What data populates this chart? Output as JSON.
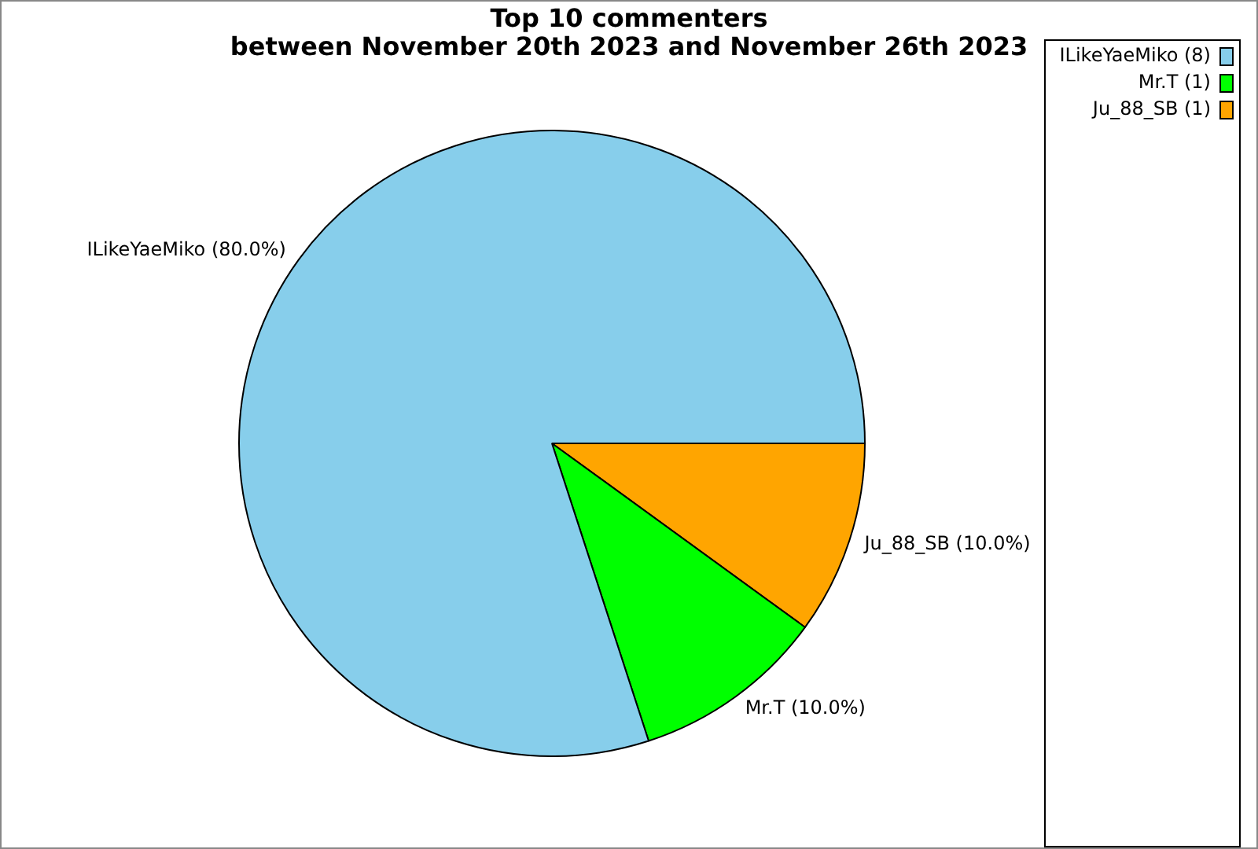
{
  "chart_data": {
    "type": "pie",
    "title": "Top 10 commenters",
    "subtitle": "between November 20th 2023 and November 26th 2023",
    "categories": [
      "ILikeYaeMiko (8)",
      "Mr.T (1)",
      "Ju_88_SB (1)"
    ],
    "values": [
      80,
      10,
      10
    ],
    "colors": [
      "#87ceeb",
      "#00ff00",
      "#ffa500"
    ],
    "value_labels": [
      "ILikeYaeMiko (80.0%)",
      "Mr.T (10.0%)",
      "Ju_88_SB (10.0%)"
    ],
    "legend": "top right"
  }
}
